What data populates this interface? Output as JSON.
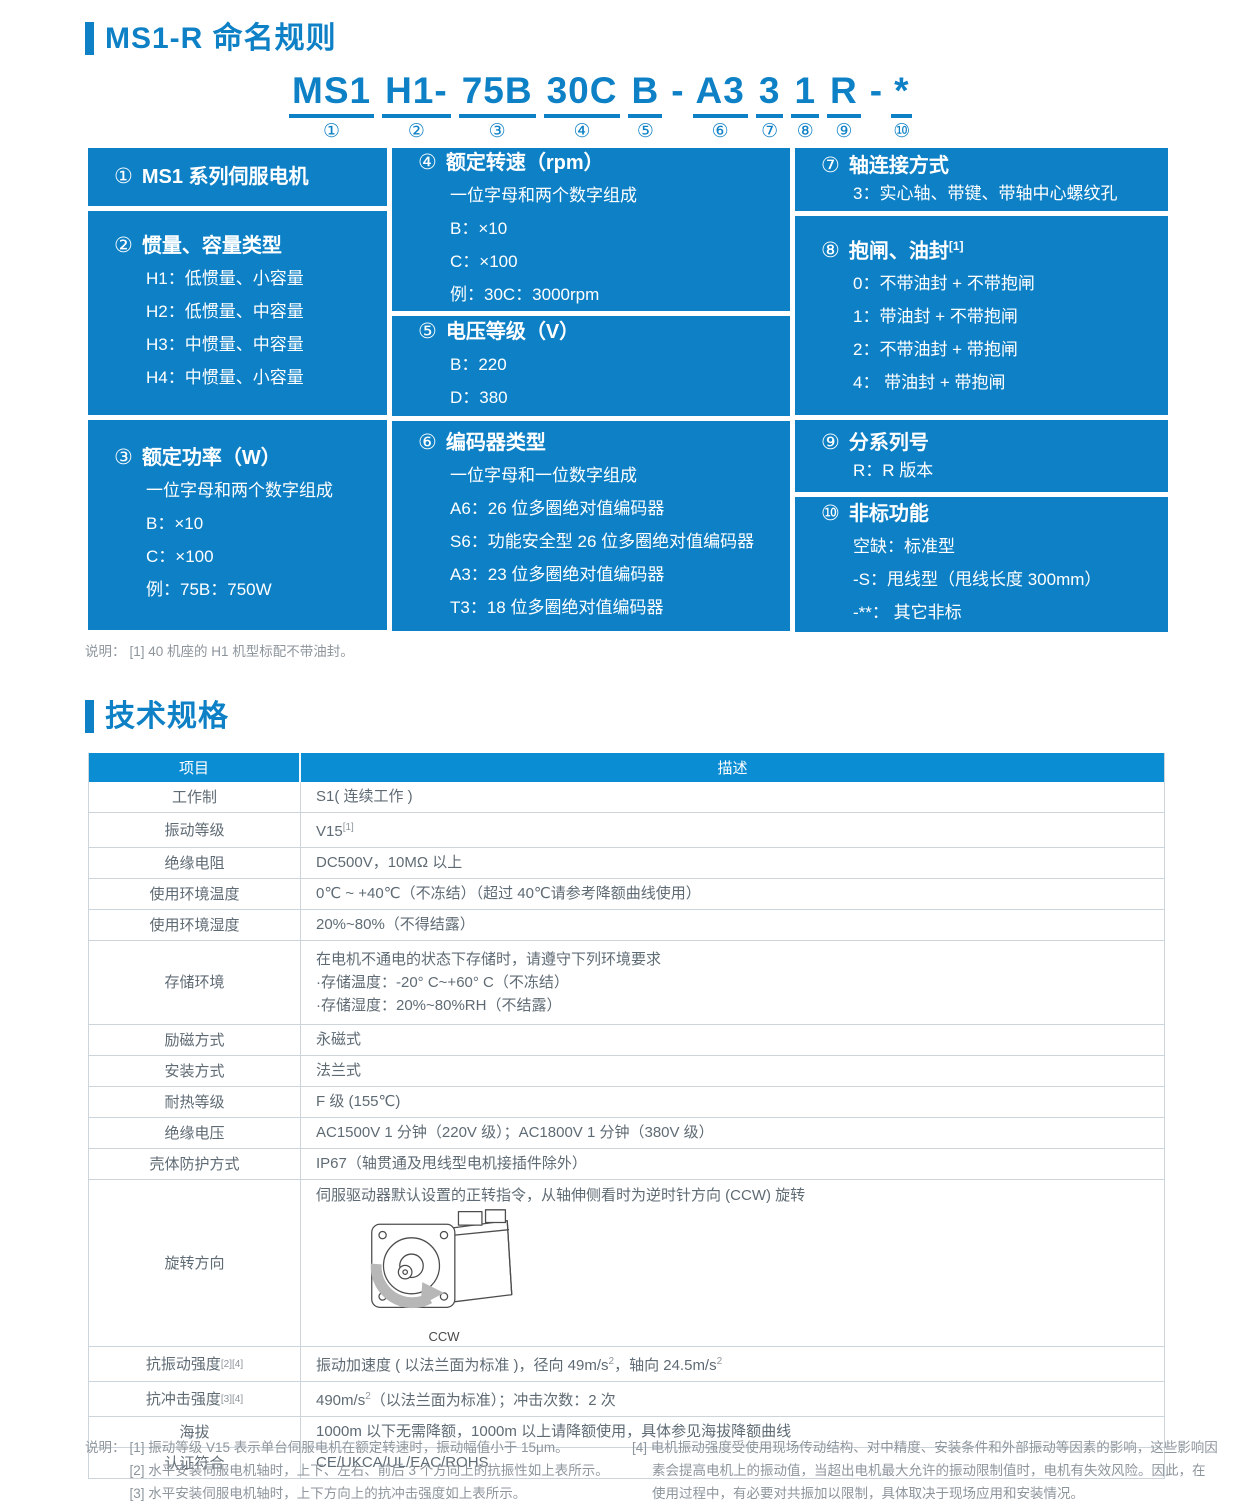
{
  "colors": {
    "accent_blue": "#0e81c6",
    "table_header_blue": "#0b8dd4",
    "table_border": "#ccd5dc",
    "body_text": "#5f6b74",
    "footnote_text": "#8d959c"
  },
  "naming": {
    "title": "MS1-R 命名规则",
    "code_segments": [
      {
        "text": "MS1",
        "num": "①"
      },
      {
        "text": "H1-",
        "num": "②"
      },
      {
        "text": "75B",
        "num": "③"
      },
      {
        "text": "30C",
        "num": "④"
      },
      {
        "text": "B",
        "num": "⑤"
      },
      {
        "sep": "-"
      },
      {
        "text": "A3",
        "num": "⑥"
      },
      {
        "text": "3",
        "num": "⑦"
      },
      {
        "text": "1",
        "num": "⑧"
      },
      {
        "text": "R",
        "num": "⑨"
      },
      {
        "sep": "-"
      },
      {
        "text": "*",
        "num": "⑩"
      }
    ],
    "columns": [
      {
        "boxes": [
          {
            "num": "①",
            "title": "MS1 系列伺服电机",
            "items": []
          },
          {
            "num": "②",
            "title": "惯量、容量类型",
            "items": [
              "H1：低惯量、小容量",
              "H2：低惯量、中容量",
              "H3：中惯量、中容量",
              "H4：中惯量、小容量"
            ]
          },
          {
            "num": "③",
            "title": "额定功率（W）",
            "items": [
              "一位字母和两个数字组成",
              "B：×10",
              "C：×100",
              "例：75B：750W"
            ]
          }
        ]
      },
      {
        "boxes": [
          {
            "num": "④",
            "title": "额定转速（rpm）",
            "items": [
              "一位字母和两个数字组成",
              "B：×10",
              "C：×100",
              "例：30C：3000rpm"
            ]
          },
          {
            "num": "⑤",
            "title": "电压等级（V）",
            "items": [
              "B：220",
              "D：380"
            ]
          },
          {
            "num": "⑥",
            "title": "编码器类型",
            "items": [
              "一位字母和一位数字组成",
              "A6：26 位多圈绝对值编码器",
              "S6：功能安全型 26 位多圈绝对值编码器",
              "A3：23 位多圈绝对值编码器",
              "T3：18 位多圈绝对值编码器"
            ]
          }
        ]
      },
      {
        "boxes": [
          {
            "num": "⑦",
            "title": "轴连接方式",
            "items": [
              "3：实心轴、带键、带轴中心螺纹孔"
            ]
          },
          {
            "num": "⑧",
            "title": "抱闸、油封^{[1]}",
            "items": [
              "0：不带油封 + 不带抱闸",
              "1：带油封 + 不带抱闸",
              "2：不带油封 + 带抱闸",
              "4： 带油封 + 带抱闸"
            ]
          },
          {
            "num": "⑨",
            "title": "分系列号",
            "items": [
              "R：R 版本"
            ]
          },
          {
            "num": "⑩",
            "title": "非标功能",
            "items": [
              "空缺：标准型",
              "-S：甩线型（甩线长度 300mm）",
              "-**： 其它非标"
            ]
          }
        ]
      }
    ],
    "note_label": "说明：",
    "note": "[1] 40 机座的 H1 机型标配不带油封。"
  },
  "specs": {
    "title": "技术规格",
    "headers": [
      "项目",
      "描述"
    ],
    "rows": [
      {
        "label": "工作制",
        "desc": [
          "S1( 连续工作 )"
        ]
      },
      {
        "label": "振动等级",
        "desc": [
          "V15^{[1]}"
        ]
      },
      {
        "label": "绝缘电阻",
        "desc": [
          "DC500V，10MΩ 以上"
        ]
      },
      {
        "label": "使用环境温度",
        "desc": [
          "0℃ ~ +40℃（不冻结）（超过 40℃请参考降额曲线使用）"
        ]
      },
      {
        "label": "使用环境湿度",
        "desc": [
          "20%~80%（不得结露）"
        ]
      },
      {
        "label": "存储环境",
        "type": "storage",
        "desc": [
          "在电机不通电的状态下存储时，请遵守下列环境要求",
          "·存储温度：-20° C~+60° C（不冻结）",
          "·存储湿度：20%~80%RH（不结露）"
        ]
      },
      {
        "label": "励磁方式",
        "desc": [
          "永磁式"
        ]
      },
      {
        "label": "安装方式",
        "desc": [
          "法兰式"
        ]
      },
      {
        "label": "耐热等级",
        "desc": [
          "F 级 (155℃)"
        ]
      },
      {
        "label": "绝缘电压",
        "desc": [
          "AC1500V 1 分钟（220V 级）；AC1800V 1 分钟（380V 级）"
        ]
      },
      {
        "label": "壳体防护方式",
        "desc": [
          "IP67（轴贯通及甩线型电机接插件除外）"
        ]
      },
      {
        "label": "旋转方向",
        "type": "rotation",
        "desc": [
          "伺服驱动器默认设置的正转指令，从轴伸侧看时为逆时针方向 (CCW) 旋转"
        ],
        "caption": "CCW"
      },
      {
        "label": "抗振动强度^{[2][4]}",
        "desc": [
          "振动加速度 ( 以法兰面为标准 )，径向 49m/s^{2}，轴向 24.5m/s^{2}"
        ]
      },
      {
        "label": "抗冲击强度^{[3][4]}",
        "desc": [
          "490m/s^{2}（以法兰面为标准）；冲击次数：2 次"
        ]
      },
      {
        "label": "海拔",
        "desc": [
          "1000m 以下无需降额，1000m 以上请降额使用，具体参见海拔降额曲线"
        ]
      },
      {
        "label": "认证符合",
        "desc": [
          "CE/UKCA/UL/EAC/ROHS"
        ]
      }
    ]
  },
  "footnotes": {
    "label": "说明：",
    "left": [
      "[1] 振动等级 V15 表示单台伺服电机在额定转速时，振动幅值小于 15μm。",
      "[2] 水平安装伺服电机轴时，上下、左右、前后 3 个方向上的抗振性如上表所示。",
      "[3] 水平安装伺服电机轴时，上下方向上的抗冲击强度如上表所示。"
    ],
    "right": "[4] 电机振动强度受使用现场传动结构、对中精度、安装条件和外部振动等因素的影响，这些影响因素会提高电机上的振动值，当超出电机最大允许的振动限制值时，电机有失效风险。因此，在使用过程中，有必要对共振加以限制，具体取决于现场应用和安装情况。"
  }
}
